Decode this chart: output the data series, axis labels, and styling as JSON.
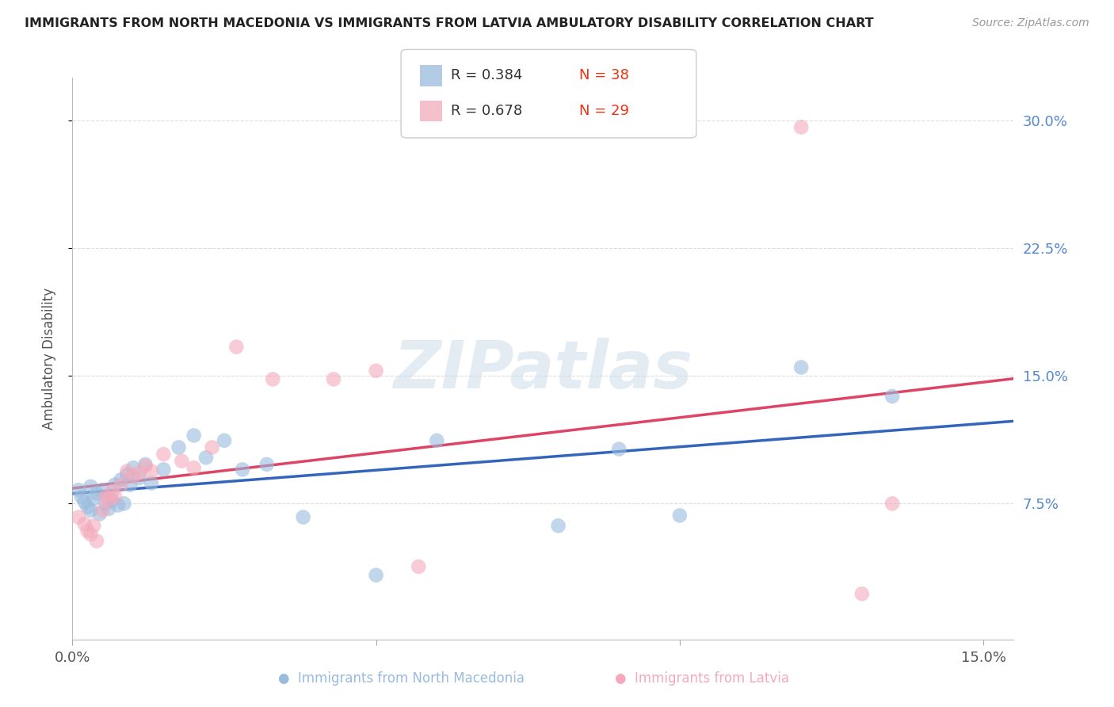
{
  "title": "IMMIGRANTS FROM NORTH MACEDONIA VS IMMIGRANTS FROM LATVIA AMBULATORY DISABILITY CORRELATION CHART",
  "source": "Source: ZipAtlas.com",
  "ylabel": "Ambulatory Disability",
  "xlim": [
    0.0,
    0.155
  ],
  "ylim": [
    -0.005,
    0.325
  ],
  "xtick_positions": [
    0.0,
    0.05,
    0.1,
    0.15
  ],
  "xtick_labels": [
    "0.0%",
    "",
    "",
    "15.0%"
  ],
  "ytick_positions": [
    0.075,
    0.15,
    0.225,
    0.3
  ],
  "ytick_labels": [
    "7.5%",
    "15.0%",
    "22.5%",
    "30.0%"
  ],
  "color_blue": "#99BBDD",
  "color_pink": "#F4AABC",
  "line_color_blue": "#3366BB",
  "line_color_pink": "#DD4466",
  "watermark_text": "ZIPatlas",
  "watermark_color": "#C8D8E8",
  "R_blue": "0.384",
  "N_blue": "38",
  "R_pink": "0.678",
  "N_pink": "29",
  "legend_color_r": "#333333",
  "legend_color_n": "#EE3311",
  "nm_x": [
    0.001,
    0.0015,
    0.002,
    0.0025,
    0.003,
    0.003,
    0.0035,
    0.004,
    0.0045,
    0.005,
    0.0055,
    0.006,
    0.0065,
    0.007,
    0.0075,
    0.008,
    0.0085,
    0.009,
    0.0095,
    0.01,
    0.011,
    0.012,
    0.013,
    0.015,
    0.0175,
    0.02,
    0.022,
    0.025,
    0.028,
    0.032,
    0.038,
    0.05,
    0.06,
    0.08,
    0.09,
    0.1,
    0.12,
    0.135
  ],
  "nm_y": [
    0.083,
    0.079,
    0.076,
    0.073,
    0.085,
    0.071,
    0.078,
    0.081,
    0.069,
    0.083,
    0.075,
    0.072,
    0.077,
    0.086,
    0.074,
    0.089,
    0.075,
    0.092,
    0.086,
    0.096,
    0.09,
    0.098,
    0.087,
    0.095,
    0.108,
    0.115,
    0.102,
    0.112,
    0.095,
    0.098,
    0.067,
    0.033,
    0.112,
    0.062,
    0.107,
    0.068,
    0.155,
    0.138
  ],
  "lv_x": [
    0.001,
    0.002,
    0.0025,
    0.003,
    0.0035,
    0.004,
    0.005,
    0.0055,
    0.006,
    0.0065,
    0.007,
    0.008,
    0.009,
    0.01,
    0.011,
    0.012,
    0.013,
    0.015,
    0.018,
    0.02,
    0.023,
    0.027,
    0.033,
    0.043,
    0.05,
    0.057,
    0.12,
    0.13,
    0.135
  ],
  "lv_y": [
    0.067,
    0.063,
    0.059,
    0.057,
    0.062,
    0.053,
    0.071,
    0.079,
    0.077,
    0.082,
    0.079,
    0.086,
    0.094,
    0.091,
    0.093,
    0.097,
    0.094,
    0.104,
    0.1,
    0.096,
    0.108,
    0.167,
    0.148,
    0.148,
    0.153,
    0.038,
    0.296,
    0.022,
    0.075
  ]
}
